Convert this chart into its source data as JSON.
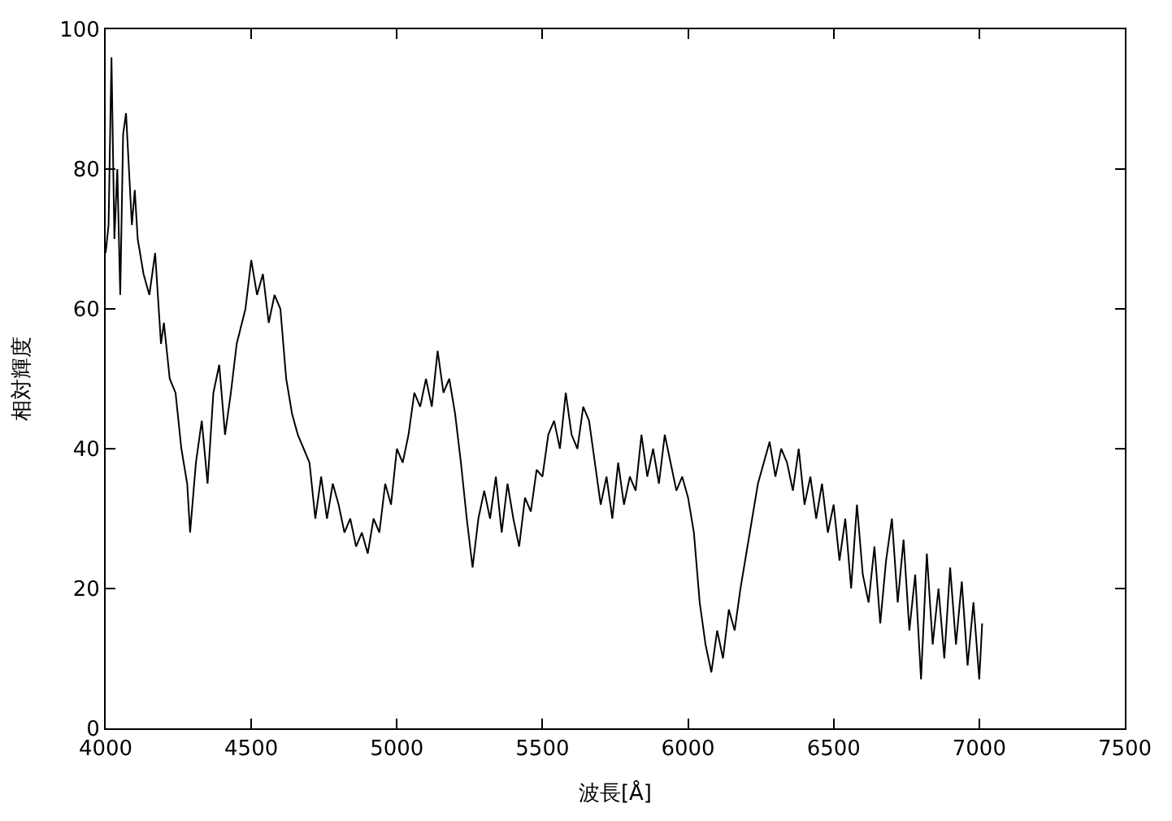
{
  "chart_data": {
    "type": "line",
    "xlabel": "波長[Å]",
    "ylabel": "相対輝度",
    "x": [
      4000,
      4010,
      4020,
      4030,
      4040,
      4050,
      4060,
      4070,
      4090,
      4100,
      4110,
      4130,
      4150,
      4170,
      4190,
      4200,
      4220,
      4240,
      4260,
      4280,
      4290,
      4310,
      4330,
      4350,
      4370,
      4390,
      4410,
      4430,
      4450,
      4480,
      4500,
      4520,
      4540,
      4560,
      4580,
      4600,
      4620,
      4640,
      4660,
      4680,
      4700,
      4720,
      4740,
      4760,
      4780,
      4800,
      4820,
      4840,
      4860,
      4880,
      4900,
      4920,
      4940,
      4960,
      4980,
      5000,
      5020,
      5040,
      5060,
      5080,
      5100,
      5120,
      5140,
      5160,
      5180,
      5200,
      5220,
      5240,
      5260,
      5280,
      5300,
      5320,
      5340,
      5360,
      5380,
      5400,
      5420,
      5440,
      5460,
      5480,
      5500,
      5520,
      5540,
      5560,
      5580,
      5600,
      5620,
      5640,
      5660,
      5680,
      5700,
      5720,
      5740,
      5760,
      5780,
      5800,
      5820,
      5840,
      5860,
      5880,
      5900,
      5920,
      5940,
      5960,
      5980,
      6000,
      6020,
      6040,
      6060,
      6080,
      6100,
      6120,
      6140,
      6160,
      6180,
      6200,
      6220,
      6240,
      6260,
      6280,
      6300,
      6320,
      6340,
      6360,
      6380,
      6400,
      6420,
      6440,
      6460,
      6480,
      6500,
      6520,
      6540,
      6560,
      6580,
      6600,
      6620,
      6640,
      6660,
      6680,
      6700,
      6720,
      6740,
      6760,
      6780,
      6800,
      6820,
      6840,
      6860,
      6880,
      6900,
      6920,
      6940,
      6960,
      6980,
      7000,
      7010
    ],
    "series": [
      {
        "color": "#000000",
        "values": [
          68,
          72,
          96,
          70,
          80,
          62,
          85,
          88,
          72,
          77,
          70,
          65,
          62,
          68,
          55,
          58,
          50,
          48,
          40,
          35,
          28,
          38,
          44,
          35,
          48,
          52,
          42,
          48,
          55,
          60,
          67,
          62,
          65,
          58,
          62,
          60,
          50,
          45,
          42,
          40,
          38,
          30,
          36,
          30,
          35,
          32,
          28,
          30,
          26,
          28,
          25,
          30,
          28,
          35,
          32,
          40,
          38,
          42,
          48,
          46,
          50,
          46,
          54,
          48,
          50,
          45,
          38,
          30,
          23,
          30,
          34,
          30,
          36,
          28,
          35,
          30,
          26,
          33,
          31,
          37,
          36,
          42,
          44,
          40,
          48,
          42,
          40,
          46,
          44,
          38,
          32,
          36,
          30,
          38,
          32,
          36,
          34,
          42,
          36,
          40,
          35,
          42,
          38,
          34,
          36,
          33,
          28,
          18,
          12,
          8,
          14,
          10,
          17,
          14,
          20,
          25,
          30,
          35,
          38,
          41,
          36,
          40,
          38,
          34,
          40,
          32,
          36,
          30,
          35,
          28,
          32,
          24,
          30,
          20,
          32,
          22,
          18,
          26,
          15,
          24,
          30,
          18,
          27,
          14,
          22,
          7,
          25,
          12,
          20,
          10,
          23,
          12,
          21,
          9,
          18,
          7,
          15
        ]
      }
    ],
    "xlim": [
      4000,
      7500
    ],
    "xticks": [
      4000,
      4500,
      5000,
      5500,
      6000,
      6500,
      7000,
      7500
    ],
    "ylim": [
      0,
      100
    ],
    "yticks": [
      0,
      20,
      40,
      60,
      80,
      100
    ],
    "legend": false,
    "marker": "none",
    "line_style": "solid"
  }
}
